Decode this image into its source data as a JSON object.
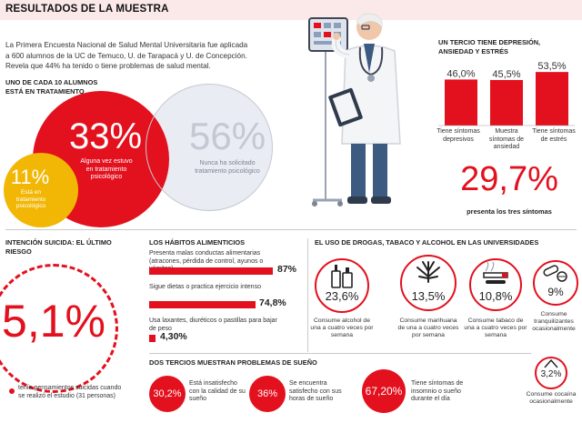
{
  "header": {
    "title": "RESULTADOS DE LA MUESTRA",
    "intro": "La Primera Encuesta Nacional de Salud Mental Universitaria fue aplicada a 600 alumnos de la UC de Temuco, U. de Tarapacá y U. de Concepción. Revela que 44% ha tenido o tiene problemas de salud mental."
  },
  "treatment": {
    "label": "UNO DE CADA 10 ALUMNOS ESTÁ EN TRATAMIENTO",
    "items": [
      {
        "value": "33%",
        "caption": "Alguna vez estuvo en tratamiento psicológico"
      },
      {
        "value": "56%",
        "caption": "Nunca ha solicitado tratamiento psicológico"
      },
      {
        "value": "11%",
        "caption": "Está en tratamiento psicológico"
      }
    ]
  },
  "chart_data": {
    "type": "bar",
    "title": "UN TERCIO TIENE DEPRESIÓN, ANSIEDAD Y ESTRÉS",
    "categories": [
      "Tiene síntomas depresivos",
      "Muestra síntomas de ansiedad",
      "Tiene síntomas de estrés"
    ],
    "values": [
      46.0,
      45.5,
      53.5
    ],
    "value_labels": [
      "46,0%",
      "45,5%",
      "53,5%"
    ],
    "ylim": [
      0,
      60
    ],
    "summary_value": "29,7%",
    "summary_caption": "presenta los tres síntomas"
  },
  "suicide": {
    "label": "INTENCIÓN SUICIDA: EL ÚLTIMO RIESGO",
    "value": "5,1%",
    "caption": "tenía pensamientos suicidas cuando se realizó el estudio (31 personas)"
  },
  "habits": {
    "label": "LOS HÁBITOS ALIMENTICIOS",
    "items": [
      {
        "text": "Presenta malas conductas alimentarias (atracones, pérdida de control, ayunos o vómitos)",
        "value": 87,
        "label": "87%"
      },
      {
        "text": "Sigue dietas o practica ejercicio intenso",
        "value": 74.8,
        "label": "74,8%"
      },
      {
        "text": "Usa laxantes, diuréticos o pastillas para bajar de peso",
        "value": 4.3,
        "label": "4,30%"
      }
    ]
  },
  "drugs": {
    "label": "EL USO DE DROGAS, TABACO Y ALCOHOL EN LAS UNIVERSIDADES",
    "items": [
      {
        "icon": "alcohol-bottles-icon",
        "value": "23,6%",
        "caption": "Consume alcohol de una a cuatro veces por semana"
      },
      {
        "icon": "marijuana-leaf-icon",
        "value": "13,5%",
        "caption": "Consume marihuana de una a cuatro veces por semana"
      },
      {
        "icon": "cigarette-icon",
        "value": "10,8%",
        "caption": "Consume tabaco de una a cuatro veces por semana"
      },
      {
        "icon": "pills-icon",
        "value": "9%",
        "caption": "Consume tranquilizantes ocasionalmente"
      },
      {
        "icon": "cocaine-icon",
        "value": "3,2%",
        "caption": "Consume cocaína ocasionalmente"
      }
    ]
  },
  "sleep": {
    "label": "DOS TERCIOS MUESTRAN PROBLEMAS DE SUEÑO",
    "items": [
      {
        "value": "30,2%",
        "caption": "Está insatisfecho con la calidad de su sueño"
      },
      {
        "value": "36%",
        "caption": "Se encuentra satisfecho con sus horas de sueño"
      },
      {
        "value": "67,20%",
        "caption": "Tiene síntomas de insomnio o sueño durante el día"
      }
    ]
  },
  "colors": {
    "accent": "#e3101e",
    "grey": "#c7ccd6",
    "yellow": "#f2b705"
  }
}
